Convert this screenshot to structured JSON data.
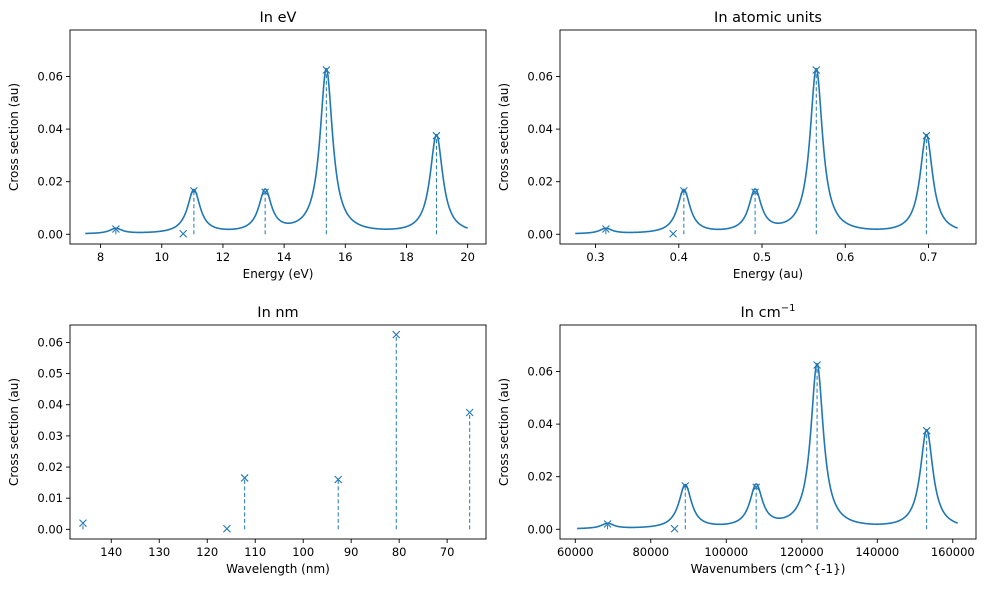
{
  "figure": {
    "background": "#ffffff",
    "line_color": "#1f77b4"
  },
  "chart_data": [
    {
      "id": "ev",
      "type": "line",
      "title": "In eV",
      "title_sup": "",
      "xlabel": "Energy (eV)",
      "ylabel": "Cross section (au)",
      "xlim": [
        7.0,
        20.6
      ],
      "ylim": [
        -0.0037,
        0.0777
      ],
      "x_reversed": false,
      "xticks": [
        8,
        10,
        12,
        14,
        16,
        18,
        20
      ],
      "xtick_labels": [
        "8",
        "10",
        "12",
        "14",
        "16",
        "18",
        "20"
      ],
      "yticks": [
        0.0,
        0.02,
        0.04,
        0.06
      ],
      "ytick_labels": [
        "0.00",
        "0.02",
        "0.04",
        "0.06"
      ],
      "grid": false,
      "legend": "none",
      "curve": {
        "gamma": 0.25,
        "x_range": [
          7.5,
          20.0
        ]
      },
      "peaks": [
        {
          "x": 8.5,
          "y": 0.002
        },
        {
          "x": 10.7,
          "y": 0.0002
        },
        {
          "x": 11.05,
          "y": 0.0165
        },
        {
          "x": 13.38,
          "y": 0.016
        },
        {
          "x": 15.38,
          "y": 0.0625
        },
        {
          "x": 18.98,
          "y": 0.0375
        }
      ]
    },
    {
      "id": "au",
      "type": "line",
      "title": "In atomic units",
      "title_sup": "",
      "xlabel": "Energy (au)",
      "ylabel": "Cross section (au)",
      "xlim": [
        0.2573,
        0.7571
      ],
      "ylim": [
        -0.0037,
        0.0777
      ],
      "x_reversed": false,
      "xticks": [
        0.3,
        0.4,
        0.5,
        0.6,
        0.7
      ],
      "xtick_labels": [
        "0.3",
        "0.4",
        "0.5",
        "0.6",
        "0.7"
      ],
      "yticks": [
        0.0,
        0.02,
        0.04,
        0.06
      ],
      "ytick_labels": [
        "0.00",
        "0.02",
        "0.04",
        "0.06"
      ],
      "grid": false,
      "legend": "none",
      "curve": {
        "gamma": 0.00919,
        "x_range": [
          0.2756,
          0.735
        ]
      },
      "peaks": [
        {
          "x": 0.3124,
          "y": 0.002
        },
        {
          "x": 0.3932,
          "y": 0.0002
        },
        {
          "x": 0.4061,
          "y": 0.0165
        },
        {
          "x": 0.4917,
          "y": 0.016
        },
        {
          "x": 0.5652,
          "y": 0.0625
        },
        {
          "x": 0.6975,
          "y": 0.0375
        }
      ]
    },
    {
      "id": "nm",
      "type": "scatter",
      "title": "In nm",
      "title_sup": "",
      "xlabel": "Wavelength (nm)",
      "ylabel": "Cross section (au)",
      "xlim": [
        148.6,
        61.9
      ],
      "ylim": [
        -0.0031,
        0.0656
      ],
      "x_reversed": true,
      "xticks": [
        140,
        130,
        120,
        110,
        100,
        90,
        80,
        70
      ],
      "xtick_labels": [
        "140",
        "130",
        "120",
        "110",
        "100",
        "90",
        "80",
        "70"
      ],
      "yticks": [
        0.0,
        0.01,
        0.02,
        0.03,
        0.04,
        0.05,
        0.06
      ],
      "ytick_labels": [
        "0.00",
        "0.01",
        "0.02",
        "0.03",
        "0.04",
        "0.05",
        "0.06"
      ],
      "grid": false,
      "legend": "none",
      "curve": null,
      "peaks": [
        {
          "x": 145.9,
          "y": 0.002
        },
        {
          "x": 115.9,
          "y": 0.0002
        },
        {
          "x": 112.2,
          "y": 0.0165
        },
        {
          "x": 92.7,
          "y": 0.016
        },
        {
          "x": 80.6,
          "y": 0.0625
        },
        {
          "x": 65.3,
          "y": 0.0375
        }
      ]
    },
    {
      "id": "cm",
      "type": "line",
      "title": "In cm",
      "title_sup": "−1",
      "xlabel": "Wavenumbers (cm^{-1})",
      "ylabel": "Cross section (au)",
      "xlim": [
        55950,
        166150
      ],
      "ylim": [
        -0.0037,
        0.0777
      ],
      "x_reversed": false,
      "xticks": [
        60000,
        80000,
        100000,
        120000,
        140000,
        160000
      ],
      "xtick_labels": [
        "60000",
        "80000",
        "100000",
        "120000",
        "140000",
        "160000"
      ],
      "yticks": [
        0.0,
        0.02,
        0.04,
        0.06
      ],
      "ytick_labels": [
        "0.00",
        "0.02",
        "0.04",
        "0.06"
      ],
      "grid": false,
      "legend": "none",
      "curve": {
        "gamma": 2016,
        "x_range": [
          60500,
          161300
        ]
      },
      "peaks": [
        {
          "x": 68550,
          "y": 0.002
        },
        {
          "x": 86300,
          "y": 0.0002
        },
        {
          "x": 89130,
          "y": 0.0165
        },
        {
          "x": 107920,
          "y": 0.016
        },
        {
          "x": 124050,
          "y": 0.0625
        },
        {
          "x": 153080,
          "y": 0.0375
        }
      ]
    }
  ]
}
